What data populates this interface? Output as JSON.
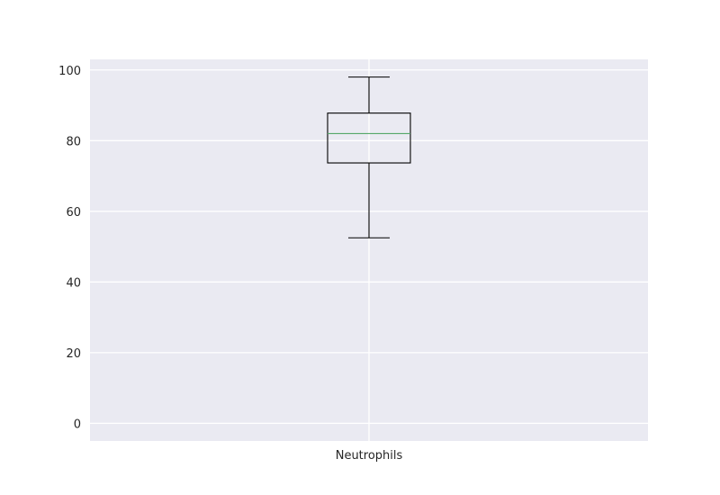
{
  "chart_data": {
    "type": "boxplot",
    "title": "",
    "xlabel": "",
    "ylabel": "",
    "categories": [
      "Neutrophils"
    ],
    "boxes": [
      {
        "name": "Neutrophils",
        "whisker_low": 52.5,
        "q1": 73.7,
        "median": 82.0,
        "q3": 87.8,
        "whisker_high": 98.0
      }
    ],
    "ylim": [
      -5,
      103
    ],
    "yticks": [
      0,
      20,
      40,
      60,
      80,
      100
    ],
    "grid": true,
    "colors": {
      "plot_background": "#eaeaf2",
      "grid": "#ffffff",
      "box": "#000000",
      "median": "#55a868",
      "text": "#262626"
    }
  }
}
